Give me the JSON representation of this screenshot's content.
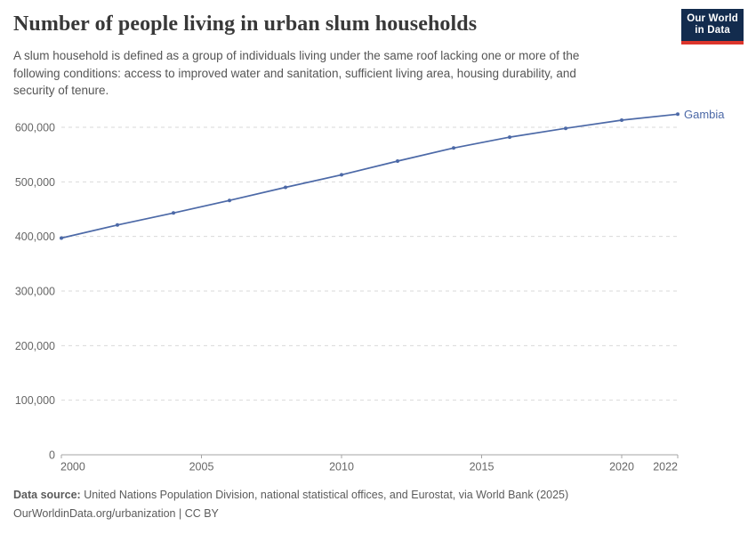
{
  "header": {
    "title": "Number of people living in urban slum households",
    "subtitle_lines": [
      "A slum household is defined as a group of individuals living under the same roof lacking one or more of the",
      "following conditions: access to improved water and sanitation, sufficient living area, housing durability, and",
      "security of tenure."
    ],
    "logo": {
      "line1": "Our World",
      "line2": "in Data",
      "background_color": "#132c4e",
      "accent_color": "#dc352c"
    }
  },
  "chart_data": {
    "type": "line",
    "title": "Number of people living in urban slum households",
    "entity": "Gambia",
    "x": [
      2000,
      2002,
      2004,
      2006,
      2008,
      2010,
      2012,
      2014,
      2016,
      2018,
      2020,
      2022
    ],
    "values": [
      397000,
      421000,
      443000,
      466000,
      490000,
      513000,
      538000,
      562000,
      582000,
      598000,
      613000,
      624000
    ],
    "x_ticks": [
      2000,
      2005,
      2010,
      2015,
      2020,
      2022
    ],
    "y_ticks": [
      0,
      100000,
      200000,
      300000,
      400000,
      500000,
      600000
    ],
    "xlim": [
      2000,
      2022
    ],
    "ylim": [
      0,
      650000
    ],
    "grid": "horizontal-dashed",
    "legend_position": "end-of-line-label",
    "line_color": "#4c69a7",
    "marker_color": "#4c69a7",
    "label_color": "#4c69a7",
    "gridline_color": "#dadada",
    "axis_color": "#a5a5a5",
    "tick_label_color": "#666666"
  },
  "footer": {
    "source_label": "Data source:",
    "source_text": " United Nations Population Division, national statistical offices, and Eurostat, via World Bank (2025)",
    "note_text": "OurWorldinData.org/urbanization | CC BY"
  }
}
